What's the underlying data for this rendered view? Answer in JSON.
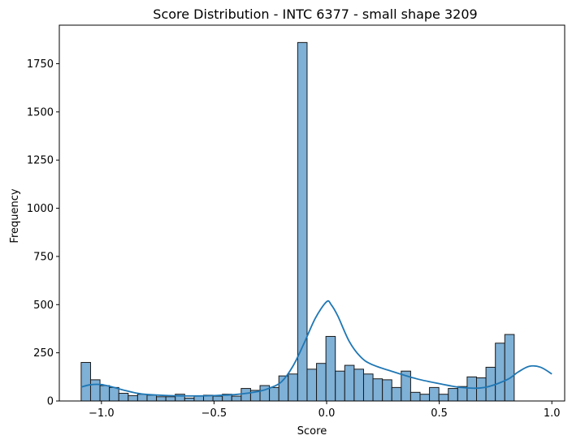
{
  "chart_data": {
    "type": "bar",
    "title": "Score Distribution - INTC 6377 - small shape 3209",
    "xlabel": "Score",
    "ylabel": "Frequency",
    "xlim": [
      -1.187,
      1.057
    ],
    "ylim": [
      0,
      1950
    ],
    "xticks": [
      -1.0,
      -0.5,
      0.0,
      0.5,
      1.0
    ],
    "xtick_labels": [
      "−1.0",
      "−0.5",
      "0.0",
      "0.5",
      "1.0"
    ],
    "yticks": [
      0,
      250,
      500,
      750,
      1000,
      1250,
      1500,
      1750
    ],
    "ytick_labels": [
      "0",
      "250",
      "500",
      "750",
      "1000",
      "1250",
      "1500",
      "1750"
    ],
    "grid": false,
    "bar_color": "#7fb0d6",
    "edge_color": "#1a1a1a",
    "kde_color": "#1f77b4",
    "bins": {
      "start": -1.09,
      "width": 0.0418,
      "counts": [
        200,
        110,
        80,
        70,
        40,
        28,
        35,
        30,
        22,
        22,
        35,
        15,
        25,
        30,
        25,
        35,
        25,
        65,
        55,
        80,
        70,
        130,
        140,
        1860,
        165,
        195,
        335,
        155,
        185,
        165,
        140,
        115,
        110,
        70,
        155,
        45,
        35,
        70,
        35,
        65,
        75,
        125,
        120,
        175,
        300,
        345
      ]
    },
    "kde": {
      "x": [
        -1.09,
        -1.05,
        -1.0,
        -0.95,
        -0.9,
        -0.85,
        -0.8,
        -0.7,
        -0.6,
        -0.5,
        -0.4,
        -0.3,
        -0.25,
        -0.2,
        -0.15,
        -0.1,
        -0.05,
        0.0,
        0.02,
        0.05,
        0.1,
        0.15,
        0.2,
        0.3,
        0.4,
        0.5,
        0.6,
        0.7,
        0.8,
        0.85,
        0.9,
        0.95,
        1.0
      ],
      "y": [
        72,
        84,
        85,
        72,
        56,
        42,
        34,
        28,
        26,
        28,
        34,
        50,
        68,
        100,
        180,
        300,
        430,
        515,
        500,
        440,
        310,
        230,
        190,
        150,
        115,
        90,
        70,
        70,
        110,
        150,
        180,
        175,
        140
      ]
    }
  }
}
